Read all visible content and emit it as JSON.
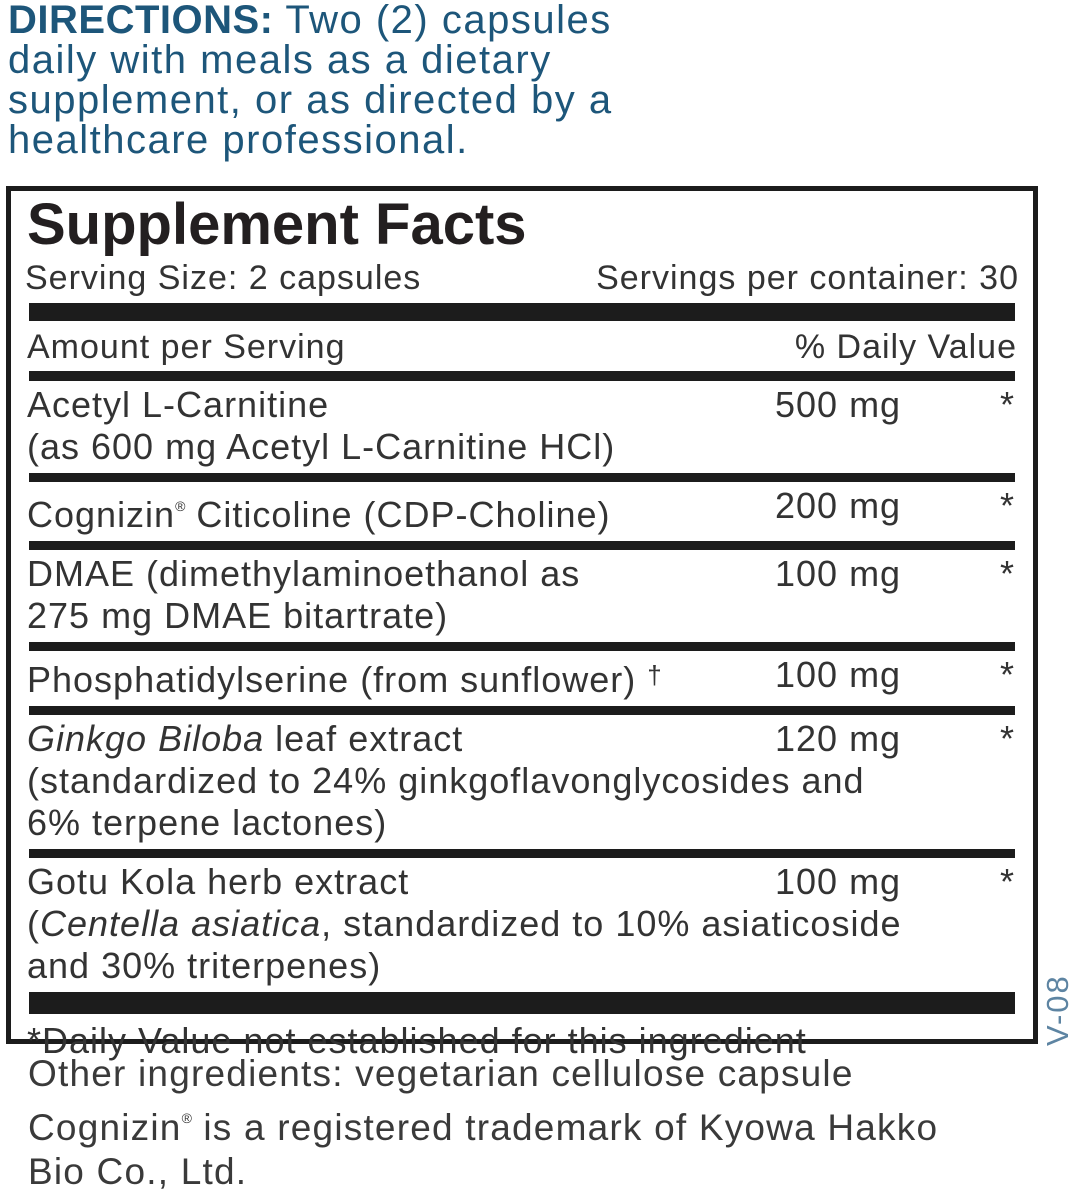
{
  "directions": {
    "label": "DIRECTIONS:",
    "lines": [
      " Two (2) capsules",
      "daily with meals as a dietary",
      "supplement, or as directed by a",
      "healthcare professional."
    ]
  },
  "panel": {
    "title": "Supplement Facts",
    "serving_size": "Serving Size: 2 capsules",
    "servings_per_container": "Servings per container: 30",
    "column_headers": {
      "amount": "Amount per Serving",
      "daily_value": "% Daily Value"
    },
    "rows": [
      {
        "name": "Acetyl L-Carnitine",
        "amount": "500 mg",
        "dv": "*",
        "wrap": [
          "(as 600 mg Acetyl L-Carnitine HCl)"
        ]
      },
      {
        "name_pre": "Cognizin",
        "reg_mark": "®",
        "name_post": " Citicoline (CDP-Choline)",
        "amount": "200 mg",
        "dv": "*"
      },
      {
        "name": "DMAE (dimethylaminoethanol as",
        "amount": "100 mg",
        "dv": "*",
        "wrap": [
          "275 mg DMAE bitartrate)"
        ]
      },
      {
        "name": "Phosphatidylserine (from sunflower) ",
        "dagger": "†",
        "amount": "100 mg",
        "dv": "*"
      },
      {
        "name_italic": "Ginkgo Biloba",
        "name_rest": " leaf extract",
        "amount": "120 mg",
        "dv": "*",
        "wrap": [
          "(standardized to 24% ginkgoflavonglycosides and",
          "6% terpene lactones)"
        ]
      },
      {
        "name": "Gotu Kola herb extract",
        "amount": "100 mg",
        "dv": "*",
        "wrap_paren": "(",
        "wrap_italic": "Centella asiatica",
        "wrap_rest": ", standardized to 10% asiaticoside",
        "wrap2": "and 30% triterpenes)"
      }
    ],
    "footnote": "*Daily Value not established for this ingredient"
  },
  "footer": {
    "other_ingredients": "Other ingredients: vegetarian cellulose capsule",
    "trademark_pre": "Cognizin",
    "trademark_reg": "®",
    "trademark_post": " is a registered trademark of Kyowa Hakko",
    "trademark_line2": "Bio Co., Ltd."
  },
  "side_label": "V-08",
  "colors": {
    "directions_blue": "#1d567a",
    "panel_black": "#1c1c1c",
    "side_code_blue": "#5d84a2"
  }
}
